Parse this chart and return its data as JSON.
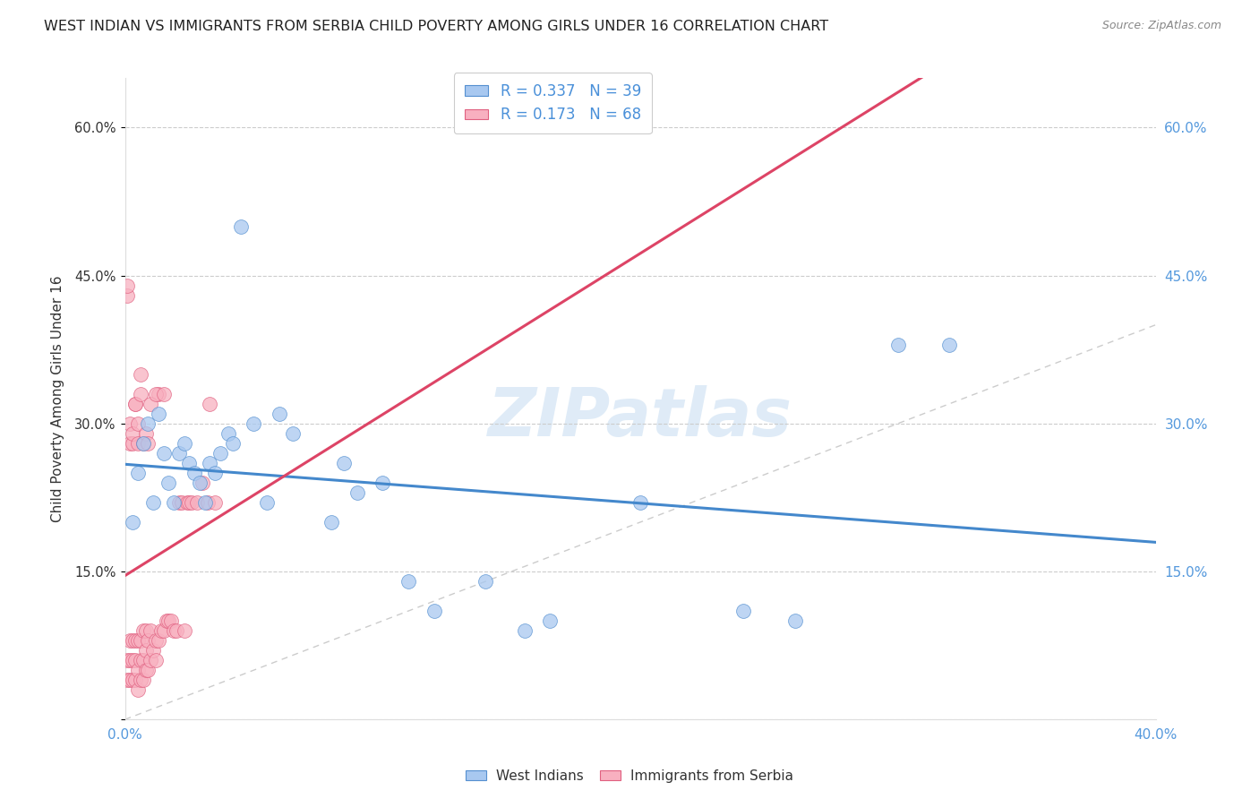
{
  "title": "WEST INDIAN VS IMMIGRANTS FROM SERBIA CHILD POVERTY AMONG GIRLS UNDER 16 CORRELATION CHART",
  "source": "Source: ZipAtlas.com",
  "ylabel": "Child Poverty Among Girls Under 16",
  "xlim": [
    0,
    0.4
  ],
  "ylim": [
    0,
    0.65
  ],
  "x_ticks": [
    0.0,
    0.05,
    0.1,
    0.15,
    0.2,
    0.25,
    0.3,
    0.35,
    0.4
  ],
  "x_tick_labels": [
    "0.0%",
    "",
    "",
    "",
    "",
    "",
    "",
    "",
    "40.0%"
  ],
  "y_ticks": [
    0.0,
    0.15,
    0.3,
    0.45,
    0.6
  ],
  "y_tick_labels": [
    "",
    "15.0%",
    "30.0%",
    "45.0%",
    "60.0%"
  ],
  "legend_r1": "R = 0.337   N = 39",
  "legend_r2": "R = 0.173   N = 68",
  "legend_label1": "West Indians",
  "legend_label2": "Immigrants from Serbia",
  "blue_fill": "#A8C8F0",
  "blue_edge": "#5590D0",
  "pink_fill": "#F8B0C0",
  "pink_edge": "#E06080",
  "blue_line": "#4488CC",
  "pink_line": "#DD4466",
  "ref_line": "#CCCCCC",
  "title_color": "#222222",
  "right_tick_color": "#5599DD",
  "bottom_tick_color": "#5599DD",
  "watermark": "ZIPatlas",
  "wi_x": [
    0.003,
    0.005,
    0.007,
    0.009,
    0.011,
    0.013,
    0.015,
    0.017,
    0.019,
    0.021,
    0.023,
    0.025,
    0.027,
    0.029,
    0.031,
    0.033,
    0.035,
    0.037,
    0.04,
    0.042,
    0.045,
    0.05,
    0.055,
    0.06,
    0.065,
    0.08,
    0.085,
    0.09,
    0.1,
    0.11,
    0.12,
    0.14,
    0.155,
    0.165,
    0.2,
    0.24,
    0.26,
    0.3,
    0.32
  ],
  "wi_y": [
    0.2,
    0.25,
    0.28,
    0.3,
    0.22,
    0.31,
    0.27,
    0.24,
    0.22,
    0.27,
    0.28,
    0.26,
    0.25,
    0.24,
    0.22,
    0.26,
    0.25,
    0.27,
    0.29,
    0.28,
    0.5,
    0.3,
    0.22,
    0.31,
    0.29,
    0.2,
    0.26,
    0.23,
    0.24,
    0.14,
    0.11,
    0.14,
    0.09,
    0.1,
    0.22,
    0.11,
    0.1,
    0.38,
    0.38
  ],
  "serb_x": [
    0.001,
    0.001,
    0.002,
    0.002,
    0.002,
    0.003,
    0.003,
    0.003,
    0.004,
    0.004,
    0.004,
    0.005,
    0.005,
    0.005,
    0.006,
    0.006,
    0.006,
    0.007,
    0.007,
    0.007,
    0.008,
    0.008,
    0.008,
    0.009,
    0.009,
    0.01,
    0.01,
    0.011,
    0.012,
    0.012,
    0.013,
    0.013,
    0.014,
    0.015,
    0.016,
    0.017,
    0.018,
    0.019,
    0.02,
    0.021,
    0.022,
    0.023,
    0.024,
    0.025,
    0.026,
    0.028,
    0.03,
    0.032,
    0.033,
    0.035,
    0.001,
    0.001,
    0.002,
    0.002,
    0.003,
    0.003,
    0.004,
    0.004,
    0.005,
    0.005,
    0.006,
    0.006,
    0.007,
    0.008,
    0.009,
    0.01,
    0.012,
    0.015
  ],
  "serb_y": [
    0.04,
    0.06,
    0.04,
    0.06,
    0.08,
    0.04,
    0.06,
    0.08,
    0.04,
    0.06,
    0.08,
    0.03,
    0.05,
    0.08,
    0.04,
    0.06,
    0.08,
    0.04,
    0.06,
    0.09,
    0.05,
    0.07,
    0.09,
    0.05,
    0.08,
    0.06,
    0.09,
    0.07,
    0.06,
    0.08,
    0.08,
    0.33,
    0.09,
    0.09,
    0.1,
    0.1,
    0.1,
    0.09,
    0.09,
    0.22,
    0.22,
    0.09,
    0.22,
    0.22,
    0.22,
    0.22,
    0.24,
    0.22,
    0.32,
    0.22,
    0.43,
    0.44,
    0.28,
    0.3,
    0.28,
    0.29,
    0.32,
    0.32,
    0.28,
    0.3,
    0.33,
    0.35,
    0.28,
    0.29,
    0.28,
    0.32,
    0.33,
    0.33
  ]
}
